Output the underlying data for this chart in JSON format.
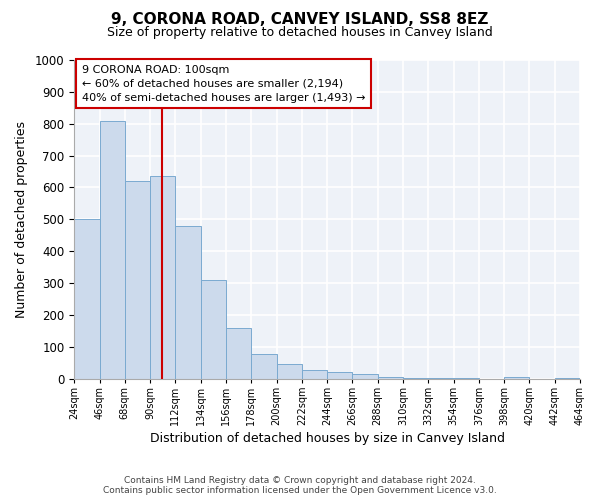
{
  "title": "9, CORONA ROAD, CANVEY ISLAND, SS8 8EZ",
  "subtitle": "Size of property relative to detached houses in Canvey Island",
  "xlabel": "Distribution of detached houses by size in Canvey Island",
  "ylabel": "Number of detached properties",
  "bar_color": "#ccdaec",
  "bar_edge_color": "#7aaad0",
  "background_color": "#eef2f8",
  "grid_color": "#ffffff",
  "bins_left": [
    24,
    46,
    68,
    90,
    112,
    134,
    156,
    178,
    200,
    222,
    244,
    266,
    288,
    310,
    332,
    354,
    376,
    398,
    420,
    442
  ],
  "bin_width": 22,
  "values": [
    500,
    810,
    620,
    635,
    480,
    310,
    160,
    78,
    47,
    27,
    20,
    14,
    6,
    2,
    1,
    1,
    0,
    4,
    0,
    2
  ],
  "tick_labels": [
    "24sqm",
    "46sqm",
    "68sqm",
    "90sqm",
    "112sqm",
    "134sqm",
    "156sqm",
    "178sqm",
    "200sqm",
    "222sqm",
    "244sqm",
    "266sqm",
    "288sqm",
    "310sqm",
    "332sqm",
    "354sqm",
    "376sqm",
    "398sqm",
    "420sqm",
    "442sqm",
    "464sqm"
  ],
  "xlim_left": 24,
  "xlim_right": 464,
  "ylim": [
    0,
    1000
  ],
  "yticks": [
    0,
    100,
    200,
    300,
    400,
    500,
    600,
    700,
    800,
    900,
    1000
  ],
  "property_line_x": 100,
  "annotation_title": "9 CORONA ROAD: 100sqm",
  "annotation_line1": "← 60% of detached houses are smaller (2,194)",
  "annotation_line2": "40% of semi-detached houses are larger (1,493) →",
  "annotation_box_color": "#ffffff",
  "annotation_box_edge": "#cc0000",
  "vline_color": "#cc0000",
  "footer1": "Contains HM Land Registry data © Crown copyright and database right 2024.",
  "footer2": "Contains public sector information licensed under the Open Government Licence v3.0."
}
